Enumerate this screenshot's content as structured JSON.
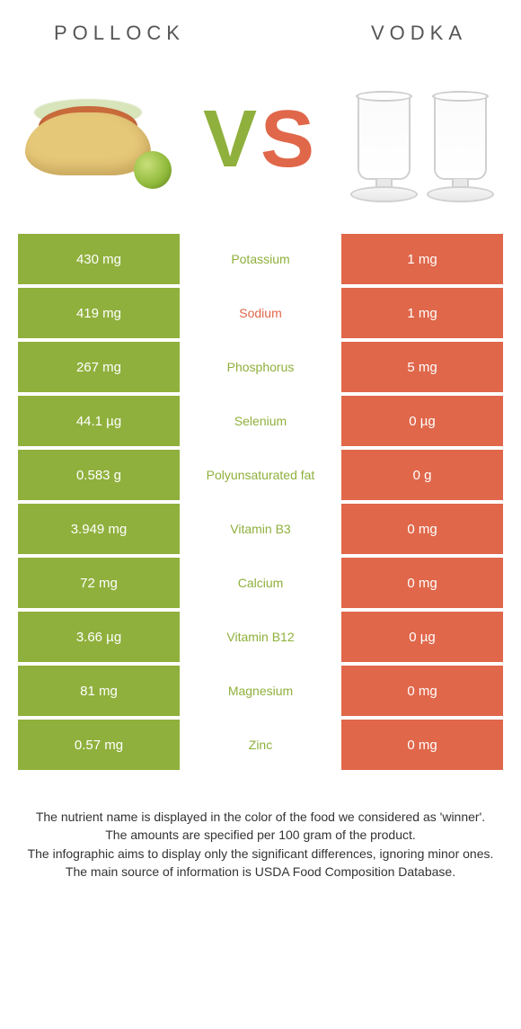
{
  "header": {
    "left_title": "POLLOCK",
    "right_title": "VODKA"
  },
  "vs": {
    "v_color": "#8fb03c",
    "s_color": "#e0674a",
    "text_v": "V",
    "text_s": "S"
  },
  "colors": {
    "left_bg": "#8fb03c",
    "right_bg": "#e0674a",
    "mid_text_left_win": "#8fb03c",
    "mid_text_right_win": "#e0674a"
  },
  "rows": [
    {
      "left": "430 mg",
      "mid": "Potassium",
      "right": "1 mg",
      "winner": "left"
    },
    {
      "left": "419 mg",
      "mid": "Sodium",
      "right": "1 mg",
      "winner": "right"
    },
    {
      "left": "267 mg",
      "mid": "Phosphorus",
      "right": "5 mg",
      "winner": "left"
    },
    {
      "left": "44.1 µg",
      "mid": "Selenium",
      "right": "0 µg",
      "winner": "left"
    },
    {
      "left": "0.583 g",
      "mid": "Polyunsaturated fat",
      "right": "0 g",
      "winner": "left"
    },
    {
      "left": "3.949 mg",
      "mid": "Vitamin B3",
      "right": "0 mg",
      "winner": "left"
    },
    {
      "left": "72 mg",
      "mid": "Calcium",
      "right": "0 mg",
      "winner": "left"
    },
    {
      "left": "3.66 µg",
      "mid": "Vitamin B12",
      "right": "0 µg",
      "winner": "left"
    },
    {
      "left": "81 mg",
      "mid": "Magnesium",
      "right": "0 mg",
      "winner": "left"
    },
    {
      "left": "0.57 mg",
      "mid": "Zinc",
      "right": "0 mg",
      "winner": "left"
    }
  ],
  "footer": {
    "line1": "The nutrient name is displayed in the color of the food we considered as 'winner'.",
    "line2": "The amounts are specified per 100 gram of the product.",
    "line3": "The infographic aims to display only the significant differences, ignoring minor ones.",
    "line4": "The main source of information is USDA Food Composition Database."
  }
}
